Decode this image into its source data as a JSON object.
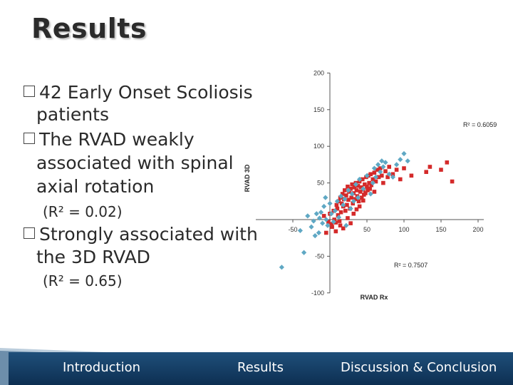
{
  "slide": {
    "title": "Results",
    "bullets": [
      {
        "main": "42 Early Onset Scoliosis patients"
      },
      {
        "main": "The RVAD weakly associated with spinal axial rotation",
        "sub": "(R² = 0.02)"
      },
      {
        "main": "Strongly associated with the 3D RVAD",
        "sub": "(R² = 0.65)"
      }
    ],
    "bullet_lines": {
      "b1_line1": "42 Early Onset Scoliosis",
      "b1_line2": "patients",
      "b2_line1": "The RVAD weakly",
      "b2_line2": "associated with spinal",
      "b2_line3": "axial rotation",
      "b2_sub": "(R² = 0.02)",
      "b3_line1": "Strongly associated with",
      "b3_line2": "the 3D RVAD",
      "b3_sub": "(R² = 0.65)"
    }
  },
  "footer": {
    "links": [
      "Introduction",
      "Results",
      "Discussion & Conclusion"
    ],
    "bar_color": "#174570"
  },
  "chart_data": {
    "type": "scatter",
    "xlabel": "RVAD Rx",
    "ylabel": "RVAD 3D",
    "xlim": [
      -100,
      200
    ],
    "ylim": [
      -100,
      200
    ],
    "xticks": [
      -50,
      50,
      100,
      150,
      200
    ],
    "yticks": [
      200,
      150,
      100,
      50,
      -50,
      -100
    ],
    "grid": false,
    "annotations": [
      "R² = 0.6059",
      "R² = 0.7507"
    ],
    "series": [
      {
        "color": "#d42a2a",
        "marker": "square",
        "points": [
          [
            -8,
            5
          ],
          [
            -2,
            -3
          ],
          [
            0,
            8
          ],
          [
            2,
            -6
          ],
          [
            3,
            -10
          ],
          [
            5,
            12
          ],
          [
            6,
            0
          ],
          [
            8,
            -4
          ],
          [
            9,
            20
          ],
          [
            10,
            15
          ],
          [
            11,
            6
          ],
          [
            12,
            25
          ],
          [
            13,
            -2
          ],
          [
            14,
            30
          ],
          [
            15,
            10
          ],
          [
            16,
            22
          ],
          [
            17,
            35
          ],
          [
            18,
            18
          ],
          [
            19,
            28
          ],
          [
            20,
            40
          ],
          [
            21,
            12
          ],
          [
            22,
            33
          ],
          [
            23,
            20
          ],
          [
            24,
            45
          ],
          [
            25,
            27
          ],
          [
            26,
            38
          ],
          [
            27,
            15
          ],
          [
            28,
            42
          ],
          [
            29,
            30
          ],
          [
            30,
            48
          ],
          [
            31,
            22
          ],
          [
            32,
            36
          ],
          [
            33,
            44
          ],
          [
            34,
            28
          ],
          [
            35,
            50
          ],
          [
            36,
            40
          ],
          [
            37,
            32
          ],
          [
            38,
            46
          ],
          [
            39,
            25
          ],
          [
            40,
            52
          ],
          [
            41,
            38
          ],
          [
            42,
            44
          ],
          [
            43,
            30
          ],
          [
            44,
            55
          ],
          [
            45,
            41
          ],
          [
            46,
            34
          ],
          [
            47,
            48
          ],
          [
            48,
            36
          ],
          [
            49,
            58
          ],
          [
            50,
            45
          ],
          [
            51,
            40
          ],
          [
            52,
            60
          ],
          [
            53,
            50
          ],
          [
            54,
            42
          ],
          [
            55,
            62
          ],
          [
            56,
            47
          ],
          [
            58,
            55
          ],
          [
            60,
            64
          ],
          [
            62,
            52
          ],
          [
            64,
            68
          ],
          [
            66,
            58
          ],
          [
            68,
            70
          ],
          [
            70,
            60
          ],
          [
            72,
            50
          ],
          [
            75,
            66
          ],
          [
            78,
            58
          ],
          [
            80,
            72
          ],
          [
            85,
            62
          ],
          [
            90,
            68
          ],
          [
            95,
            55
          ],
          [
            100,
            70
          ],
          [
            110,
            60
          ],
          [
            130,
            65
          ],
          [
            135,
            72
          ],
          [
            150,
            68
          ],
          [
            158,
            78
          ],
          [
            165,
            52
          ],
          [
            18,
            -12
          ],
          [
            24,
            2
          ],
          [
            8,
            -16
          ],
          [
            32,
            8
          ],
          [
            -5,
            -18
          ],
          [
            28,
            -5
          ],
          [
            14,
            -8
          ],
          [
            40,
            18
          ],
          [
            45,
            26
          ],
          [
            60,
            38
          ],
          [
            36,
            14
          ]
        ]
      },
      {
        "color": "#5fa8c4",
        "marker": "diamond",
        "points": [
          [
            -65,
            -65
          ],
          [
            -35,
            -45
          ],
          [
            -25,
            -10
          ],
          [
            -22,
            -2
          ],
          [
            -18,
            8
          ],
          [
            -15,
            -18
          ],
          [
            -14,
            2
          ],
          [
            -12,
            10
          ],
          [
            -10,
            -5
          ],
          [
            -8,
            18
          ],
          [
            -5,
            0
          ],
          [
            -3,
            -8
          ],
          [
            0,
            22
          ],
          [
            2,
            8
          ],
          [
            5,
            -3
          ],
          [
            7,
            12
          ],
          [
            10,
            25
          ],
          [
            12,
            3
          ],
          [
            15,
            32
          ],
          [
            18,
            20
          ],
          [
            20,
            28
          ],
          [
            25,
            40
          ],
          [
            28,
            15
          ],
          [
            30,
            35
          ],
          [
            32,
            25
          ],
          [
            35,
            48
          ],
          [
            38,
            30
          ],
          [
            40,
            55
          ],
          [
            45,
            42
          ],
          [
            50,
            60
          ],
          [
            55,
            35
          ],
          [
            58,
            50
          ],
          [
            60,
            70
          ],
          [
            62,
            58
          ],
          [
            65,
            75
          ],
          [
            68,
            65
          ],
          [
            70,
            80
          ],
          [
            72,
            72
          ],
          [
            75,
            78
          ],
          [
            80,
            62
          ],
          [
            85,
            58
          ],
          [
            90,
            75
          ],
          [
            95,
            82
          ],
          [
            100,
            90
          ],
          [
            105,
            80
          ],
          [
            -30,
            5
          ],
          [
            -20,
            -22
          ],
          [
            -6,
            30
          ],
          [
            -40,
            -15
          ],
          [
            22,
            -8
          ]
        ]
      }
    ]
  }
}
